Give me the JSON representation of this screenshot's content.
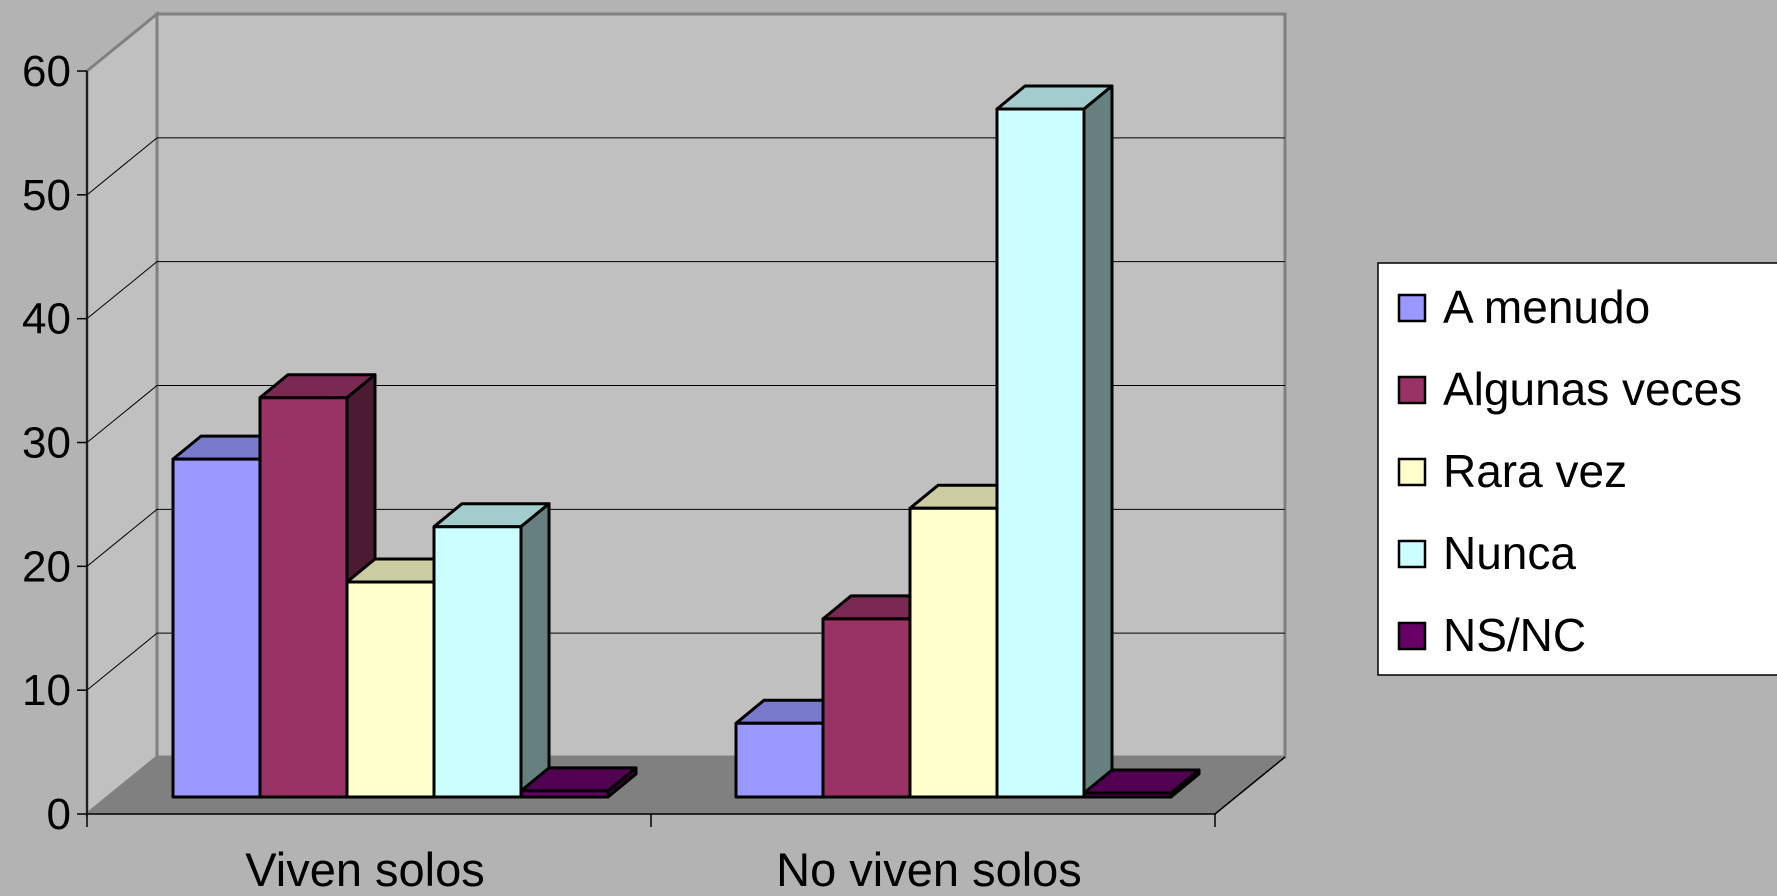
{
  "chart_data": {
    "type": "bar",
    "title": "",
    "xlabel": "",
    "ylabel": "",
    "ylim": [
      0,
      60
    ],
    "yticks": [
      0,
      10,
      20,
      30,
      40,
      50,
      60
    ],
    "grid": true,
    "three_d": true,
    "legend_position": "right",
    "categories": [
      "Viven solos",
      "No viven solos"
    ],
    "series": [
      {
        "name": "A menudo",
        "color": "#9999ff",
        "values": [
          27.5,
          6.0
        ]
      },
      {
        "name": "Algunas veces",
        "color": "#993366",
        "values": [
          32.5,
          14.5
        ]
      },
      {
        "name": "Rara vez",
        "color": "#ffffcc",
        "values": [
          17.5,
          23.5
        ]
      },
      {
        "name": "Nunca",
        "color": "#ccffff",
        "values": [
          22.0,
          56.0
        ]
      },
      {
        "name": "NS/NC",
        "color": "#660066",
        "values": [
          0.5,
          0.3
        ]
      }
    ]
  },
  "colors": {
    "background": "#b3b3b3",
    "plot_wall": "#c0c0c0",
    "floor": "#808080"
  }
}
